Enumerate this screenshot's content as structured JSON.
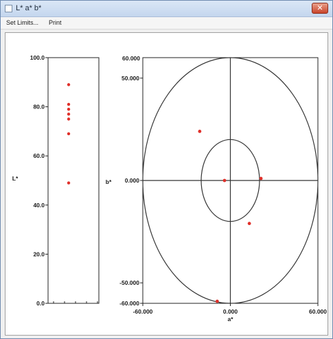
{
  "window": {
    "title": "L* a* b*",
    "close_label": "✕"
  },
  "menu": [
    {
      "label": "Set Limits..."
    },
    {
      "label": "Print"
    }
  ],
  "chart_data": [
    {
      "type": "scatter",
      "title": "",
      "ylabel": "L*",
      "ylim": [
        0,
        100
      ],
      "y_ticks": [
        "0.0",
        "20.0",
        "40.0",
        "60.0",
        "80.0",
        "100.0"
      ],
      "points": [
        {
          "y": 89
        },
        {
          "y": 81
        },
        {
          "y": 79
        },
        {
          "y": 77
        },
        {
          "y": 75
        },
        {
          "y": 69
        },
        {
          "y": 49
        }
      ],
      "marker_color": "#e0302a"
    },
    {
      "type": "scatter",
      "title": "",
      "xlabel": "a*",
      "ylabel": "b*",
      "xlim": [
        -60,
        60
      ],
      "ylim": [
        -60,
        60
      ],
      "x_ticks": [
        "-60.000",
        "0.000",
        "60.000"
      ],
      "y_ticks_right_top": "60.000",
      "y_ticks": [
        "50.000",
        "0.000",
        "-50.000",
        "-60.000"
      ],
      "circles": [
        60,
        20
      ],
      "points": [
        {
          "x": -21,
          "y": 24
        },
        {
          "x": -4,
          "y": 0
        },
        {
          "x": 21,
          "y": 1
        },
        {
          "x": 13,
          "y": -21
        },
        {
          "x": -9,
          "y": -59
        }
      ],
      "marker_color": "#e0302a"
    }
  ]
}
